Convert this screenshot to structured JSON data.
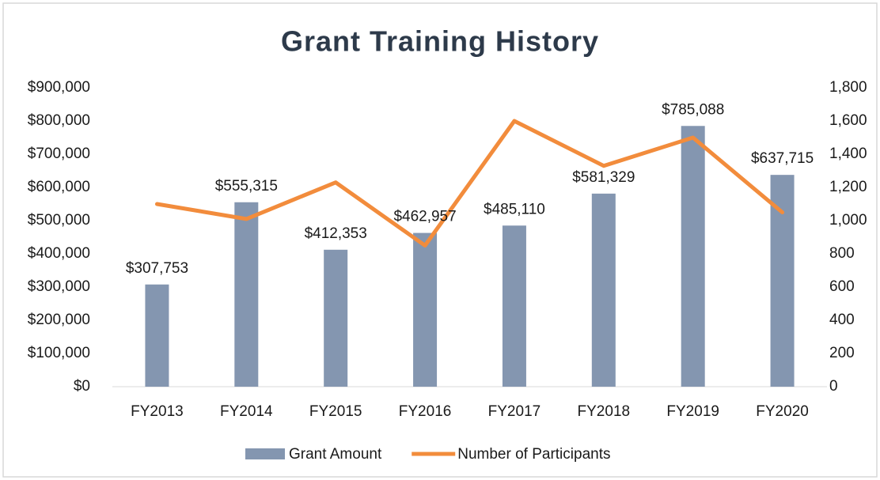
{
  "chart_data": {
    "type": "bar-line",
    "title": "Grant Training History",
    "categories": [
      "FY2013",
      "FY2014",
      "FY2015",
      "FY2016",
      "FY2017",
      "FY2018",
      "FY2019",
      "FY2020"
    ],
    "series": [
      {
        "name": "Grant Amount",
        "type": "bar",
        "color": "#8496b0",
        "axis": "y",
        "values": [
          307753,
          555315,
          412353,
          462957,
          485110,
          581329,
          785088,
          637715
        ],
        "value_labels": [
          "$307,753",
          "$555,315",
          "$412,353",
          "$462,957",
          "$485,110",
          "$581,329",
          "$785,088",
          "$637,715"
        ]
      },
      {
        "name": "Number of Participants",
        "type": "line",
        "color": "#f28c3c",
        "axis": "y2",
        "values": [
          1100,
          1010,
          1230,
          850,
          1600,
          1330,
          1500,
          1050
        ]
      }
    ],
    "ylim": [
      0,
      900000
    ],
    "yticks": [
      {
        "value": 0,
        "label": "$0"
      },
      {
        "value": 100000,
        "label": "$100,000"
      },
      {
        "value": 200000,
        "label": "$200,000"
      },
      {
        "value": 300000,
        "label": "$300,000"
      },
      {
        "value": 400000,
        "label": "$400,000"
      },
      {
        "value": 500000,
        "label": "$500,000"
      },
      {
        "value": 600000,
        "label": "$600,000"
      },
      {
        "value": 700000,
        "label": "$700,000"
      },
      {
        "value": 800000,
        "label": "$800,000"
      },
      {
        "value": 900000,
        "label": "$900,000"
      }
    ],
    "y2lim": [
      0,
      1800
    ],
    "y2ticks": [
      0,
      200,
      400,
      600,
      800,
      {
        "value": 1000,
        "label": "1,000"
      },
      {
        "value": 1200,
        "label": "1,200"
      },
      {
        "value": 1400,
        "label": "1,400"
      },
      {
        "value": 1600,
        "label": "1,600"
      },
      {
        "value": 1800,
        "label": "1,800"
      }
    ],
    "legend": "bottom"
  }
}
